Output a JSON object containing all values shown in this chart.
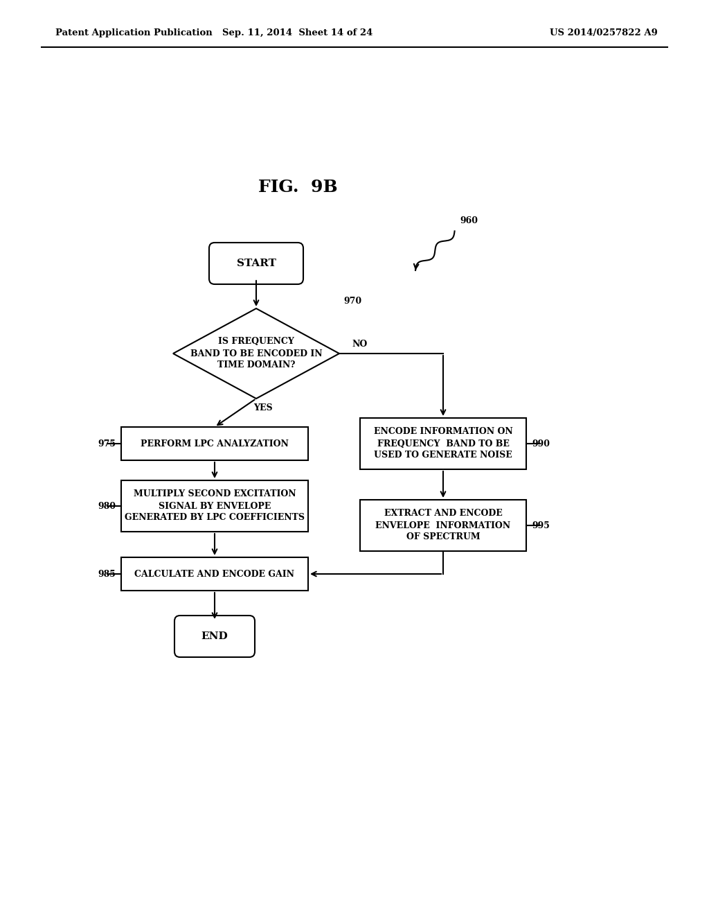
{
  "fig_label": "FIG.  9B",
  "header_left": "Patent Application Publication",
  "header_center": "Sep. 11, 2014  Sheet 14 of 24",
  "header_right": "US 2014/0257822 A9",
  "bg_color": "#ffffff",
  "start_text": "START",
  "end_text": "END",
  "diamond_text": "IS FREQUENCY\nBAND TO BE ENCODED IN\nTIME DOMAIN?",
  "diamond_label": "970",
  "box975_text": "PERFORM LPC ANALYZATION",
  "box980_text": "MULTIPLY SECOND EXCITATION\nSIGNAL BY ENVELOPE\nGENERATED BY LPC COEFFICIENTS",
  "box985_text": "CALCULATE AND ENCODE GAIN",
  "box990_text": "ENCODE INFORMATION ON\nFREQUENCY  BAND TO BE\nUSED TO GENERATE NOISE",
  "box995_text": "EXTRACT AND ENCODE\nENVELOPE  INFORMATION\nOF SPECTRUM",
  "label_975": "975",
  "label_980": "980",
  "label_985": "985",
  "label_990": "990",
  "label_995": "995",
  "label_960": "960",
  "no_text": "NO",
  "yes_text": "YES"
}
